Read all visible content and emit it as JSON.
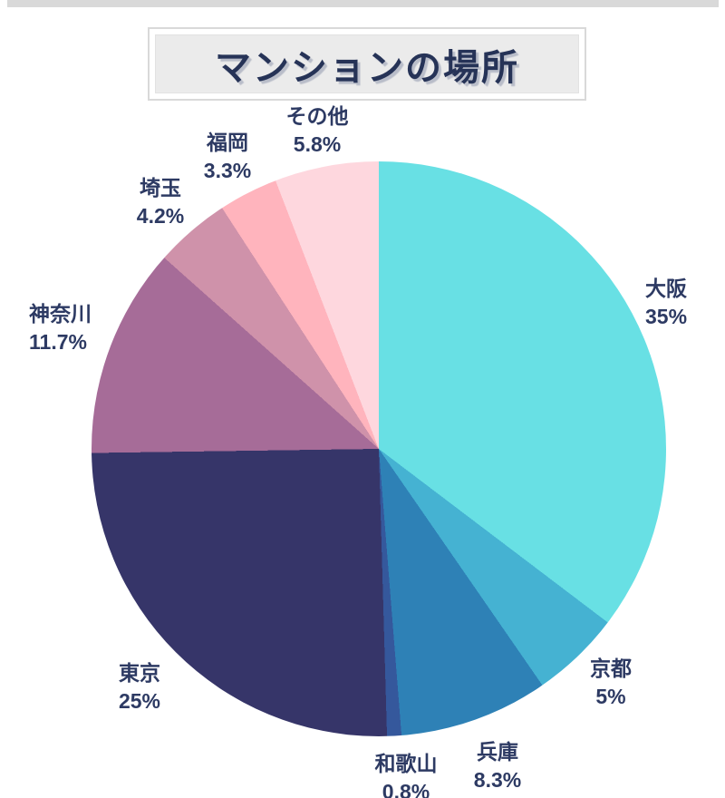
{
  "page": {
    "background_color": "#ffffff",
    "top_bar_color": "#d9d9d9"
  },
  "title": {
    "text": "マンションの場所",
    "text_color": "#263357",
    "panel_fill": "#ebebeb",
    "frame_color": "#d9d9d9"
  },
  "chart_data": {
    "type": "pie",
    "title": "マンションの場所",
    "start_angle_deg": 0,
    "direction": "clockwise",
    "label_color": "#2d3a63",
    "legend_position": "none",
    "slices": [
      {
        "label": "大阪",
        "value": 35,
        "pct": "35%",
        "color": "#68e0e4"
      },
      {
        "label": "京都",
        "value": 5,
        "pct": "5%",
        "color": "#45b2d2"
      },
      {
        "label": "兵庫",
        "value": 8.3,
        "pct": "8.3%",
        "color": "#2e81b6"
      },
      {
        "label": "和歌山",
        "value": 0.8,
        "pct": "0.8%",
        "color": "#35589c"
      },
      {
        "label": "東京",
        "value": 25,
        "pct": "25%",
        "color": "#363569"
      },
      {
        "label": "神奈川",
        "value": 11.7,
        "pct": "11.7%",
        "color": "#a66c98"
      },
      {
        "label": "埼玉",
        "value": 4.2,
        "pct": "4.2%",
        "color": "#cf92aa"
      },
      {
        "label": "福岡",
        "value": 3.3,
        "pct": "3.3%",
        "color": "#ffb4bd"
      },
      {
        "label": "その他",
        "value": 5.8,
        "pct": "5.8%",
        "color": "#fed7de"
      }
    ]
  }
}
